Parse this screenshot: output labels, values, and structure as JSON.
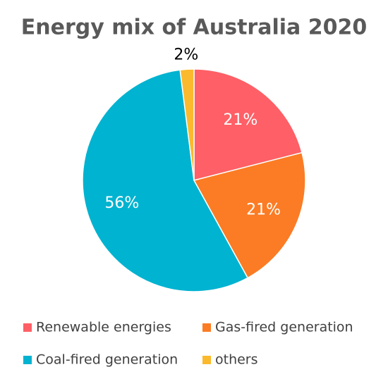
{
  "chart_data": {
    "type": "pie",
    "title": "Energy mix of Australia 2020",
    "categories": [
      "Renewable energies",
      "Gas-fired generation",
      "Coal-fired generation",
      "others"
    ],
    "values": [
      21,
      21,
      56,
      2
    ],
    "value_labels": [
      "21%",
      "21%",
      "56%",
      "2%"
    ],
    "colors": [
      "#ff5f66",
      "#fb7c24",
      "#00b3d0",
      "#fbb92d"
    ],
    "legend": "bottom"
  }
}
